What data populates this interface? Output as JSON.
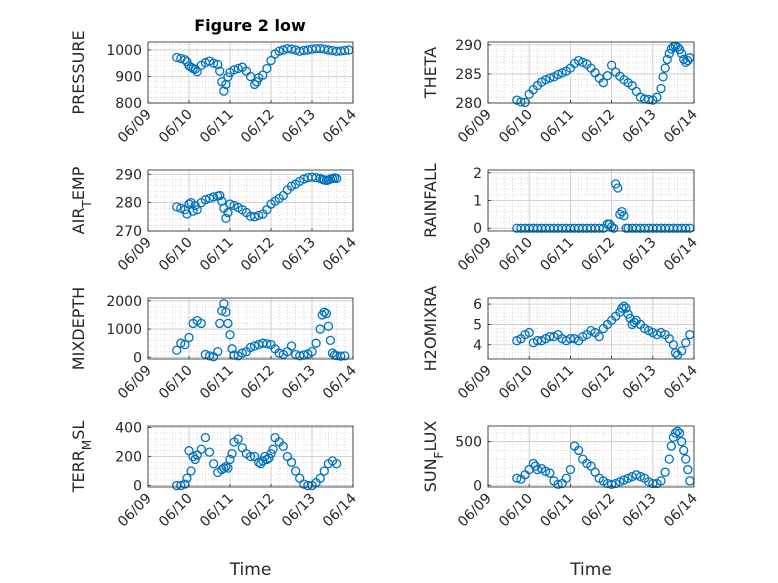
{
  "figure": {
    "title": "Figure 2 low"
  },
  "chart_data": [
    {
      "type": "scatter",
      "title": "Figure 2 low",
      "ylabel": "PRESSURE",
      "xlabel": "",
      "ylim": [
        800,
        1030
      ],
      "yticks": [
        "800",
        "900",
        "1000"
      ],
      "xlim": [
        0,
        5
      ],
      "xticks": [
        "06/09",
        "06/10",
        "06/11",
        "06/12",
        "06/13",
        "06/14"
      ],
      "grid": true,
      "marker_color": "#0072BD",
      "x": [
        0.7,
        0.8,
        0.9,
        0.95,
        1.0,
        1.05,
        1.1,
        1.15,
        1.2,
        1.3,
        1.4,
        1.5,
        1.6,
        1.7,
        1.75,
        1.8,
        1.85,
        1.9,
        1.95,
        2.0,
        2.1,
        2.2,
        2.3,
        2.4,
        2.5,
        2.6,
        2.65,
        2.7,
        2.8,
        2.9,
        3.0,
        3.1,
        3.2,
        3.3,
        3.4,
        3.5,
        3.6,
        3.7,
        3.8,
        3.9,
        4.0,
        4.1,
        4.2,
        4.3,
        4.4,
        4.5,
        4.6,
        4.7,
        4.8,
        4.9
      ],
      "y": [
        972,
        968,
        963,
        955,
        940,
        935,
        930,
        928,
        918,
        942,
        952,
        958,
        950,
        945,
        920,
        880,
        845,
        870,
        898,
        915,
        925,
        930,
        935,
        920,
        900,
        870,
        880,
        895,
        905,
        930,
        960,
        985,
        995,
        1000,
        1005,
        1003,
        1000,
        995,
        998,
        1000,
        1003,
        1005,
        1005,
        1003,
        1000,
        998,
        995,
        996,
        998,
        1000
      ]
    },
    {
      "type": "scatter",
      "title": "",
      "ylabel": "THETA",
      "xlabel": "",
      "ylim": [
        280,
        290.5
      ],
      "yticks": [
        "280",
        "285",
        "290"
      ],
      "xlim": [
        0,
        5
      ],
      "xticks": [
        "06/09",
        "06/10",
        "06/11",
        "06/12",
        "06/13",
        "06/14"
      ],
      "grid": true,
      "marker_color": "#0072BD",
      "x": [
        0.7,
        0.8,
        0.9,
        1.0,
        1.1,
        1.2,
        1.3,
        1.4,
        1.5,
        1.6,
        1.7,
        1.8,
        1.9,
        2.0,
        2.1,
        2.2,
        2.3,
        2.4,
        2.5,
        2.6,
        2.7,
        2.8,
        2.9,
        3.0,
        3.1,
        3.2,
        3.3,
        3.4,
        3.5,
        3.6,
        3.7,
        3.8,
        3.9,
        4.0,
        4.1,
        4.2,
        4.25,
        4.3,
        4.35,
        4.4,
        4.45,
        4.5,
        4.55,
        4.6,
        4.65,
        4.7,
        4.75,
        4.8,
        4.85,
        4.9
      ],
      "y": [
        280.5,
        280.2,
        280.1,
        281.5,
        282.3,
        283.0,
        283.6,
        284.0,
        284.3,
        284.5,
        284.9,
        285.2,
        285.5,
        286.0,
        286.8,
        287.3,
        287.0,
        286.7,
        286.0,
        285.2,
        284.3,
        283.5,
        284.7,
        286.5,
        285.3,
        284.6,
        284.0,
        283.5,
        283.0,
        282.0,
        281.0,
        280.7,
        280.6,
        280.5,
        281.0,
        282.5,
        284.5,
        286.0,
        287.5,
        288.5,
        289.3,
        289.7,
        289.8,
        289.6,
        289.2,
        288.5,
        287.5,
        287.0,
        287.3,
        287.8
      ]
    },
    {
      "type": "scatter",
      "title": "",
      "ylabel": "AIR_TEMP",
      "ylabel_main": "AIR",
      "ylabel_sub": "T",
      "ylabel_rest": "EMP",
      "xlabel": "",
      "ylim": [
        270,
        291.5
      ],
      "yticks": [
        "270",
        "280",
        "290"
      ],
      "xlim": [
        0,
        5
      ],
      "xticks": [
        "06/09",
        "06/10",
        "06/11",
        "06/12",
        "06/13",
        "06/14"
      ],
      "grid": true,
      "marker_color": "#0072BD",
      "x": [
        0.7,
        0.8,
        0.9,
        0.95,
        1.0,
        1.05,
        1.1,
        1.15,
        1.2,
        1.3,
        1.4,
        1.5,
        1.6,
        1.7,
        1.75,
        1.8,
        1.85,
        1.9,
        1.95,
        2.0,
        2.1,
        2.2,
        2.3,
        2.4,
        2.5,
        2.6,
        2.7,
        2.8,
        2.9,
        3.0,
        3.1,
        3.2,
        3.3,
        3.4,
        3.5,
        3.6,
        3.7,
        3.8,
        3.9,
        4.0,
        4.1,
        4.2,
        4.25,
        4.3,
        4.35,
        4.4,
        4.45,
        4.5,
        4.55,
        4.6
      ],
      "y": [
        278.5,
        278.0,
        277.5,
        276.0,
        279.5,
        280.0,
        277.0,
        279.0,
        277.5,
        280.0,
        281.0,
        281.5,
        282.0,
        282.3,
        282.5,
        280.5,
        278.0,
        274.5,
        276.5,
        279.5,
        279.0,
        278.3,
        277.5,
        276.5,
        275.2,
        275.0,
        275.5,
        276.0,
        277.5,
        279.5,
        280.5,
        281.5,
        282.5,
        284.5,
        285.8,
        286.5,
        287.5,
        288.3,
        288.8,
        289.0,
        288.8,
        288.5,
        288.2,
        288.0,
        287.8,
        288.0,
        288.3,
        288.5,
        288.7,
        288.5
      ]
    },
    {
      "type": "scatter",
      "title": "",
      "ylabel": "RAINFALL",
      "xlabel": "",
      "ylim": [
        -0.1,
        2.1
      ],
      "yticks": [
        "0",
        "1",
        "2"
      ],
      "xlim": [
        0,
        5
      ],
      "xticks": [
        "06/09",
        "06/10",
        "06/11",
        "06/12",
        "06/13",
        "06/14"
      ],
      "grid": true,
      "marker_color": "#0072BD",
      "x": [
        0.7,
        0.8,
        0.9,
        1.0,
        1.1,
        1.2,
        1.3,
        1.4,
        1.5,
        1.6,
        1.7,
        1.8,
        1.9,
        2.0,
        2.1,
        2.2,
        2.3,
        2.4,
        2.5,
        2.6,
        2.7,
        2.8,
        2.9,
        2.95,
        3.0,
        3.05,
        3.1,
        3.15,
        3.2,
        3.25,
        3.3,
        3.35,
        3.4,
        3.5,
        3.6,
        3.7,
        3.8,
        3.9,
        4.0,
        4.1,
        4.2,
        4.3,
        4.4,
        4.5,
        4.6,
        4.7,
        4.8,
        4.9
      ],
      "y": [
        0,
        0,
        0,
        0,
        0,
        0,
        0,
        0,
        0,
        0,
        0,
        0,
        0,
        0,
        0,
        0,
        0,
        0,
        0,
        0,
        0,
        0,
        0.15,
        0.15,
        0.05,
        0,
        1.6,
        1.45,
        0.5,
        0.6,
        0.45,
        0,
        0,
        0,
        0,
        0,
        0,
        0,
        0,
        0,
        0,
        0,
        0,
        0,
        0,
        0,
        0,
        0
      ]
    },
    {
      "type": "scatter",
      "title": "",
      "ylabel": "MIXDEPTH",
      "xlabel": "",
      "ylim": [
        -60,
        2100
      ],
      "yticks": [
        "0",
        "1000",
        "2000"
      ],
      "xlim": [
        0,
        5
      ],
      "xticks": [
        "06/09",
        "06/10",
        "06/11",
        "06/12",
        "06/13",
        "06/14"
      ],
      "grid": true,
      "marker_color": "#0072BD",
      "x": [
        0.7,
        0.8,
        0.9,
        1.0,
        1.1,
        1.2,
        1.3,
        1.4,
        1.5,
        1.6,
        1.7,
        1.75,
        1.8,
        1.85,
        1.9,
        1.95,
        2.0,
        2.05,
        2.1,
        2.2,
        2.3,
        2.4,
        2.5,
        2.6,
        2.7,
        2.8,
        2.9,
        3.0,
        3.1,
        3.2,
        3.3,
        3.4,
        3.5,
        3.6,
        3.7,
        3.8,
        3.9,
        4.0,
        4.1,
        4.2,
        4.25,
        4.3,
        4.35,
        4.4,
        4.45,
        4.5,
        4.55,
        4.6,
        4.7,
        4.8
      ],
      "y": [
        250,
        500,
        450,
        700,
        1200,
        1300,
        1200,
        100,
        50,
        20,
        200,
        1200,
        1650,
        1900,
        1600,
        1200,
        800,
        300,
        80,
        50,
        150,
        200,
        350,
        400,
        450,
        500,
        480,
        450,
        300,
        150,
        100,
        200,
        400,
        100,
        50,
        80,
        120,
        200,
        500,
        1000,
        1500,
        1600,
        1550,
        1100,
        600,
        150,
        80,
        60,
        40,
        50
      ]
    },
    {
      "type": "scatter",
      "title": "",
      "ylabel": "H2OMIXRA",
      "xlabel": "",
      "ylim": [
        3.3,
        6.3
      ],
      "yticks": [
        "4",
        "5",
        "6"
      ],
      "xlim": [
        0,
        5
      ],
      "xticks": [
        "06/09",
        "06/10",
        "06/11",
        "06/12",
        "06/13",
        "06/14"
      ],
      "grid": true,
      "marker_color": "#0072BD",
      "x": [
        0.7,
        0.8,
        0.9,
        1.0,
        1.1,
        1.2,
        1.3,
        1.4,
        1.5,
        1.6,
        1.7,
        1.8,
        1.9,
        2.0,
        2.1,
        2.2,
        2.3,
        2.4,
        2.5,
        2.6,
        2.7,
        2.8,
        2.9,
        3.0,
        3.1,
        3.2,
        3.25,
        3.3,
        3.35,
        3.4,
        3.45,
        3.5,
        3.55,
        3.6,
        3.7,
        3.8,
        3.9,
        4.0,
        4.1,
        4.2,
        4.3,
        4.4,
        4.5,
        4.55,
        4.6,
        4.7,
        4.8,
        4.9
      ],
      "y": [
        4.2,
        4.3,
        4.5,
        4.6,
        4.1,
        4.2,
        4.2,
        4.3,
        4.4,
        4.4,
        4.5,
        4.3,
        4.2,
        4.3,
        4.3,
        4.2,
        4.4,
        4.5,
        4.7,
        4.6,
        4.4,
        4.8,
        5.0,
        5.2,
        5.4,
        5.6,
        5.8,
        5.9,
        5.8,
        5.5,
        5.3,
        5.0,
        5.1,
        5.2,
        5.0,
        4.8,
        4.7,
        4.6,
        4.5,
        4.6,
        4.5,
        4.3,
        4.0,
        3.6,
        3.5,
        3.7,
        4.1,
        4.5
      ]
    },
    {
      "type": "scatter",
      "title": "",
      "ylabel": "TERR_MSL",
      "ylabel_main": "TERR",
      "ylabel_sub": "M",
      "ylabel_rest": "SL",
      "xlabel": "Time",
      "ylim": [
        -10,
        410
      ],
      "yticks": [
        "0",
        "200",
        "400"
      ],
      "xlim": [
        0,
        5
      ],
      "xticks": [
        "06/09",
        "06/10",
        "06/11",
        "06/12",
        "06/13",
        "06/14"
      ],
      "grid": true,
      "marker_color": "#0072BD",
      "x": [
        0.7,
        0.8,
        0.9,
        0.95,
        1.0,
        1.05,
        1.1,
        1.15,
        1.2,
        1.3,
        1.4,
        1.5,
        1.6,
        1.7,
        1.8,
        1.85,
        1.9,
        1.95,
        2.0,
        2.05,
        2.1,
        2.2,
        2.3,
        2.4,
        2.5,
        2.6,
        2.7,
        2.75,
        2.8,
        2.85,
        2.9,
        2.95,
        3.0,
        3.05,
        3.1,
        3.2,
        3.3,
        3.4,
        3.5,
        3.6,
        3.7,
        3.8,
        3.9,
        4.0,
        4.1,
        4.2,
        4.3,
        4.4,
        4.5,
        4.6
      ],
      "y": [
        0,
        0,
        10,
        50,
        240,
        100,
        200,
        180,
        210,
        250,
        330,
        230,
        150,
        90,
        110,
        120,
        130,
        120,
        180,
        220,
        300,
        320,
        260,
        220,
        200,
        200,
        160,
        150,
        170,
        200,
        180,
        190,
        220,
        250,
        330,
        300,
        270,
        200,
        160,
        100,
        50,
        10,
        0,
        0,
        20,
        50,
        100,
        150,
        170,
        150
      ]
    },
    {
      "type": "scatter",
      "title": "",
      "ylabel": "SUN_FLUX",
      "ylabel_main": "SUN",
      "ylabel_sub": "F",
      "ylabel_rest": "LUX",
      "xlabel": "Time",
      "ylim": [
        -20,
        680
      ],
      "yticks": [
        "0",
        "500"
      ],
      "xlim": [
        0,
        5
      ],
      "xticks": [
        "06/09",
        "06/10",
        "06/11",
        "06/12",
        "06/13",
        "06/14"
      ],
      "grid": true,
      "marker_color": "#0072BD",
      "x": [
        0.7,
        0.8,
        0.9,
        1.0,
        1.1,
        1.15,
        1.2,
        1.3,
        1.4,
        1.5,
        1.6,
        1.7,
        1.8,
        1.9,
        2.0,
        2.1,
        2.2,
        2.3,
        2.4,
        2.5,
        2.6,
        2.7,
        2.8,
        2.9,
        3.0,
        3.1,
        3.2,
        3.3,
        3.4,
        3.5,
        3.6,
        3.7,
        3.8,
        3.9,
        4.0,
        4.1,
        4.2,
        4.3,
        4.4,
        4.45,
        4.5,
        4.55,
        4.6,
        4.65,
        4.7,
        4.75,
        4.8,
        4.85,
        4.9
      ],
      "y": [
        80,
        70,
        120,
        180,
        250,
        220,
        180,
        190,
        160,
        140,
        50,
        10,
        20,
        80,
        180,
        450,
        400,
        300,
        250,
        220,
        150,
        80,
        50,
        20,
        10,
        20,
        40,
        60,
        80,
        100,
        120,
        100,
        80,
        40,
        20,
        20,
        50,
        150,
        300,
        450,
        550,
        600,
        620,
        600,
        500,
        400,
        300,
        180,
        50
      ]
    }
  ]
}
